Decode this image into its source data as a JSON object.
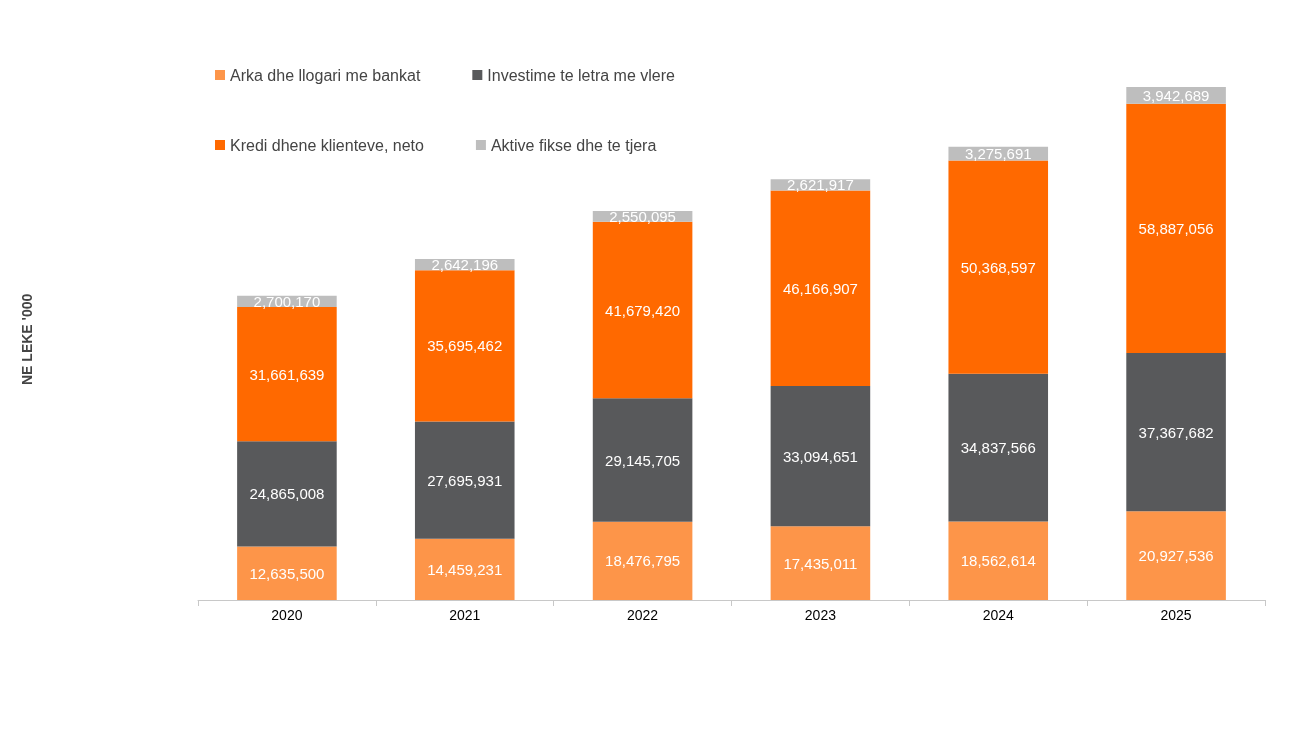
{
  "chart_data": {
    "type": "bar",
    "stacked": true,
    "annotations": [
      "NE LEKE '000"
    ],
    "categories": [
      "2020",
      "2021",
      "2022",
      "2023",
      "2024",
      "2025"
    ],
    "series": [
      {
        "name": "Arka dhe llogari me bankat",
        "color": "#fd9549",
        "values": [
          12635500,
          14459231,
          18476795,
          17435011,
          18562614,
          20927536
        ],
        "value_labels": [
          "12,635,500",
          "14,459,231",
          "18,476,795",
          "17,435,011",
          "18,562,614",
          "20,927,536"
        ]
      },
      {
        "name": "Investime te letra me vlere",
        "color": "#58595b",
        "values": [
          24865008,
          27695931,
          29145705,
          33094651,
          34837566,
          37367682
        ],
        "value_labels": [
          "24,865,008",
          "27,695,931",
          "29,145,705",
          "33,094,651",
          "34,837,566",
          "37,367,682"
        ]
      },
      {
        "name": "Kredi dhene klienteve, neto",
        "color": "#ff6900",
        "values": [
          31661639,
          35695462,
          41679420,
          46166907,
          50368597,
          58887056
        ],
        "value_labels": [
          "31,661,639",
          "35,695,462",
          "41,679,420",
          "46,166,907",
          "50,368,597",
          "58,887,056"
        ]
      },
      {
        "name": "Aktive fikse dhe te tjera",
        "color": "#bebebe",
        "values": [
          2700170,
          2642196,
          2550095,
          2621917,
          3275691,
          3942689
        ],
        "value_labels": [
          "2,700,170",
          "2,642,196",
          "2,550,095",
          "2,621,917",
          "3,275,691",
          "3,942,689"
        ]
      }
    ],
    "legend": "top left",
    "grid": false
  }
}
